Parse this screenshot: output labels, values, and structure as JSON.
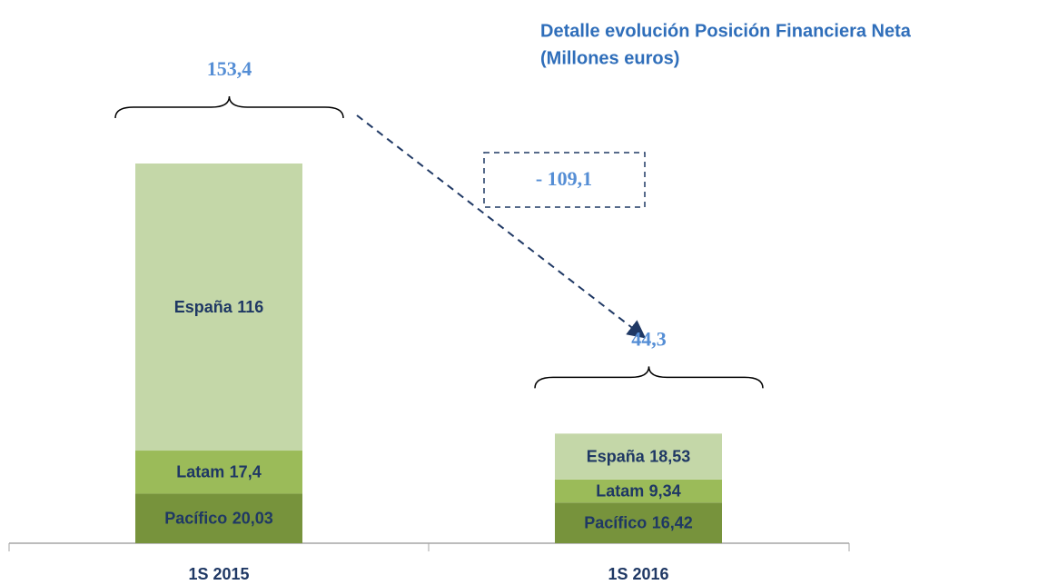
{
  "chart_data": {
    "type": "stacked_bar",
    "title": "Detalle evolución Posición Financiera Neta",
    "subtitle": "(Millones euros)",
    "categories": [
      "1S 2015",
      "1S 2016"
    ],
    "series": [
      {
        "name": "Pacífico",
        "color": "#77933c",
        "values": [
          20.03,
          16.42
        ],
        "value_labels": [
          "20,03",
          "16,42"
        ]
      },
      {
        "name": "Latam",
        "color": "#9bbb59",
        "values": [
          17.4,
          9.34
        ],
        "value_labels": [
          "17,4",
          "9,34"
        ]
      },
      {
        "name": "España",
        "color": "#c4d7a8",
        "values": [
          116,
          18.53
        ],
        "value_labels": [
          "116",
          "18,53"
        ]
      }
    ],
    "totals": {
      "values": [
        153.4,
        44.3
      ],
      "value_labels": [
        "153,4",
        "44,3"
      ]
    },
    "annotation": "- 109,1"
  }
}
